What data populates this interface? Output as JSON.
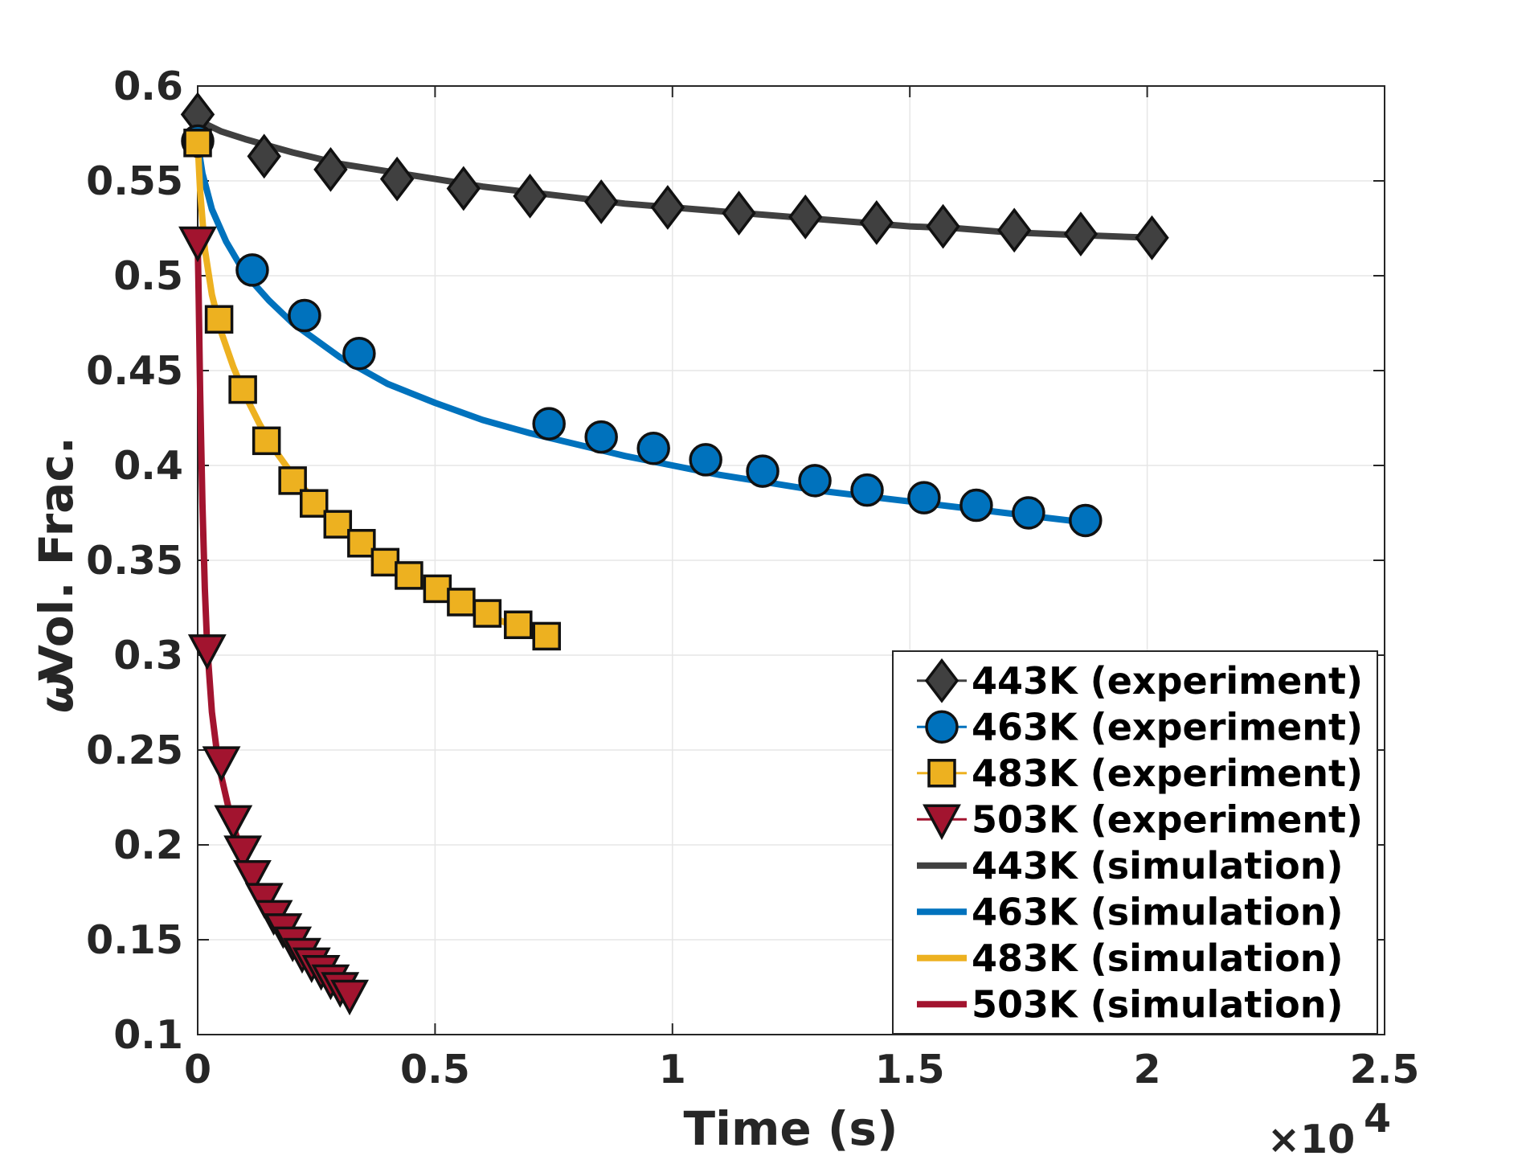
{
  "chart_data": {
    "type": "line",
    "title": "",
    "xlabel": "Time (s)",
    "ylabel_symbol": "ω",
    "ylabel": "Vol. Frac.",
    "xlim": [
      0,
      2.5
    ],
    "ylim": [
      0.1,
      0.6
    ],
    "x_ticks": [
      0,
      0.5,
      1,
      1.5,
      2,
      2.5
    ],
    "x_tick_labels": [
      "0",
      "0.5",
      "1",
      "1.5",
      "2",
      "2.5"
    ],
    "y_ticks": [
      0.1,
      0.15,
      0.2,
      0.25,
      0.3,
      0.35,
      0.4,
      0.45,
      0.5,
      0.55,
      0.6
    ],
    "y_tick_labels": [
      "0.1",
      "0.15",
      "0.2",
      "0.25",
      "0.3",
      "0.35",
      "0.4",
      "0.45",
      "0.5",
      "0.55",
      "0.6"
    ],
    "x_exponent_base": "×10",
    "x_exponent_power": "4",
    "grid": true,
    "legend_position": "bottom-right",
    "series": [
      {
        "name": "443K (experiment)",
        "kind": "experiment",
        "marker": "diamond",
        "color": "#404040",
        "x": [
          0.0,
          0.14,
          0.28,
          0.42,
          0.56,
          0.7,
          0.85,
          0.99,
          1.14,
          1.28,
          1.43,
          1.57,
          1.72,
          1.86,
          2.01
        ],
        "y": [
          0.585,
          0.563,
          0.556,
          0.551,
          0.546,
          0.542,
          0.539,
          0.536,
          0.533,
          0.531,
          0.528,
          0.526,
          0.524,
          0.522,
          0.52
        ]
      },
      {
        "name": "463K (experiment)",
        "kind": "experiment",
        "marker": "circle",
        "color": "#0072BD",
        "x": [
          0.0,
          0.115,
          0.225,
          0.34,
          0.74,
          0.85,
          0.96,
          1.07,
          1.19,
          1.3,
          1.41,
          1.53,
          1.64,
          1.75,
          1.87
        ],
        "y": [
          0.571,
          0.503,
          0.479,
          0.459,
          0.422,
          0.415,
          0.409,
          0.403,
          0.397,
          0.392,
          0.387,
          0.383,
          0.379,
          0.375,
          0.371
        ]
      },
      {
        "name": "483K (experiment)",
        "kind": "experiment",
        "marker": "square",
        "color": "#EDB120",
        "x": [
          0.0,
          0.045,
          0.095,
          0.145,
          0.2,
          0.245,
          0.295,
          0.345,
          0.395,
          0.445,
          0.505,
          0.555,
          0.61,
          0.675,
          0.735
        ],
        "y": [
          0.57,
          0.477,
          0.44,
          0.413,
          0.392,
          0.38,
          0.369,
          0.359,
          0.349,
          0.342,
          0.335,
          0.328,
          0.322,
          0.316,
          0.31
        ]
      },
      {
        "name": "503K (experiment)",
        "kind": "experiment",
        "marker": "triangle-down",
        "color": "#A2142F",
        "x": [
          0.0,
          0.02,
          0.05,
          0.075,
          0.095,
          0.115,
          0.14,
          0.16,
          0.18,
          0.2,
          0.22,
          0.24,
          0.26,
          0.28,
          0.3,
          0.32
        ],
        "y": [
          0.518,
          0.303,
          0.244,
          0.213,
          0.197,
          0.184,
          0.172,
          0.163,
          0.156,
          0.149,
          0.143,
          0.138,
          0.134,
          0.129,
          0.125,
          0.121
        ]
      },
      {
        "name": "443K (simulation)",
        "kind": "simulation",
        "color": "#404040",
        "x": [
          0.0,
          0.05,
          0.1,
          0.2,
          0.3,
          0.4,
          0.5,
          0.6,
          0.7,
          0.8,
          0.9,
          1.0,
          1.1,
          1.2,
          1.3,
          1.4,
          1.5,
          1.6,
          1.7,
          1.8,
          1.9,
          2.01
        ],
        "y": [
          0.582,
          0.576,
          0.572,
          0.565,
          0.559,
          0.555,
          0.551,
          0.547,
          0.544,
          0.541,
          0.538,
          0.536,
          0.534,
          0.532,
          0.53,
          0.528,
          0.526,
          0.525,
          0.523,
          0.522,
          0.521,
          0.52
        ]
      },
      {
        "name": "463K (simulation)",
        "kind": "simulation",
        "color": "#0072BD",
        "x": [
          0.0,
          0.01,
          0.03,
          0.06,
          0.1,
          0.15,
          0.2,
          0.3,
          0.4,
          0.5,
          0.6,
          0.7,
          0.8,
          0.9,
          1.0,
          1.1,
          1.2,
          1.3,
          1.4,
          1.5,
          1.6,
          1.7,
          1.87
        ],
        "y": [
          0.57,
          0.554,
          0.535,
          0.518,
          0.501,
          0.487,
          0.475,
          0.457,
          0.443,
          0.433,
          0.424,
          0.417,
          0.411,
          0.405,
          0.4,
          0.395,
          0.391,
          0.387,
          0.384,
          0.381,
          0.378,
          0.375,
          0.37
        ]
      },
      {
        "name": "483K (simulation)",
        "kind": "simulation",
        "color": "#EDB120",
        "x": [
          0.0,
          0.005,
          0.015,
          0.03,
          0.05,
          0.075,
          0.1,
          0.13,
          0.16,
          0.2,
          0.25,
          0.3,
          0.35,
          0.4,
          0.45,
          0.5,
          0.55,
          0.6,
          0.65,
          0.7,
          0.735
        ],
        "y": [
          0.57,
          0.545,
          0.514,
          0.49,
          0.47,
          0.452,
          0.437,
          0.422,
          0.409,
          0.395,
          0.38,
          0.368,
          0.357,
          0.348,
          0.341,
          0.334,
          0.328,
          0.322,
          0.317,
          0.312,
          0.309
        ]
      },
      {
        "name": "503K (simulation)",
        "kind": "simulation",
        "color": "#A2142F",
        "x": [
          0.0,
          0.002,
          0.005,
          0.01,
          0.015,
          0.02,
          0.03,
          0.04,
          0.05,
          0.07,
          0.09,
          0.11,
          0.14,
          0.17,
          0.2,
          0.23,
          0.26,
          0.29,
          0.32
        ],
        "y": [
          0.518,
          0.49,
          0.44,
          0.38,
          0.335,
          0.305,
          0.27,
          0.25,
          0.236,
          0.214,
          0.198,
          0.185,
          0.17,
          0.157,
          0.148,
          0.14,
          0.133,
          0.127,
          0.121
        ]
      }
    ]
  }
}
